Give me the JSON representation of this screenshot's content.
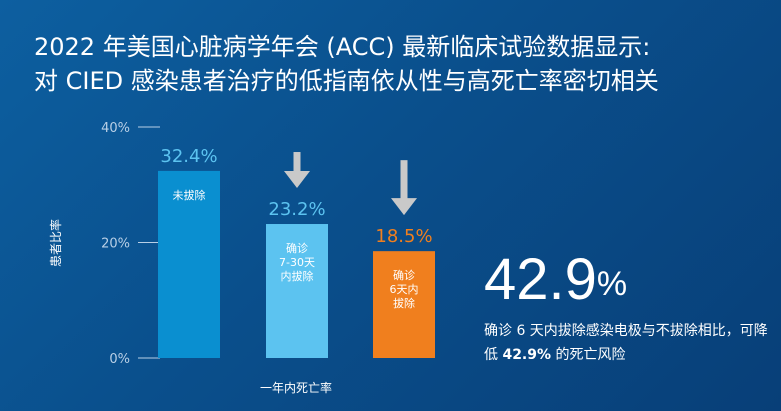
{
  "title_line1": "2022 年美国心脏病学年会 (ACC) 最新临床试验数据显示:",
  "title_line2": "对 CIED 感染患者治疗的低指南依从性与高死亡率密切相关",
  "colors": {
    "bar_not_removed": "#0a8fd0",
    "bar_7_30": "#5cc3f0",
    "bar_6days": "#f07f1e",
    "arrow": "#c9c9c9"
  },
  "chart_data": {
    "type": "bar",
    "ylabel": "患者比率",
    "xlabel": "一年内死亡率",
    "ylim": [
      0,
      40
    ],
    "yticks": [
      "0%",
      "20%",
      "40%"
    ],
    "ytick_values": [
      0,
      20,
      40
    ],
    "categories": [
      "未拔除",
      "确诊\n7-30天\n内拔除",
      "确诊\n6天内\n拔除"
    ],
    "values": [
      32.4,
      23.2,
      18.5
    ],
    "value_labels": [
      "32.4%",
      "23.2%",
      "18.5%"
    ],
    "grid": false,
    "down_arrows_on": [
      1,
      2
    ]
  },
  "stat": {
    "number": "42.9",
    "unit": "%",
    "caption_prefix": "确诊 6 天内拔除感染电极与不拔除相比，可降低 ",
    "caption_bold": "42.9%",
    "caption_suffix": " 的死亡风险"
  }
}
